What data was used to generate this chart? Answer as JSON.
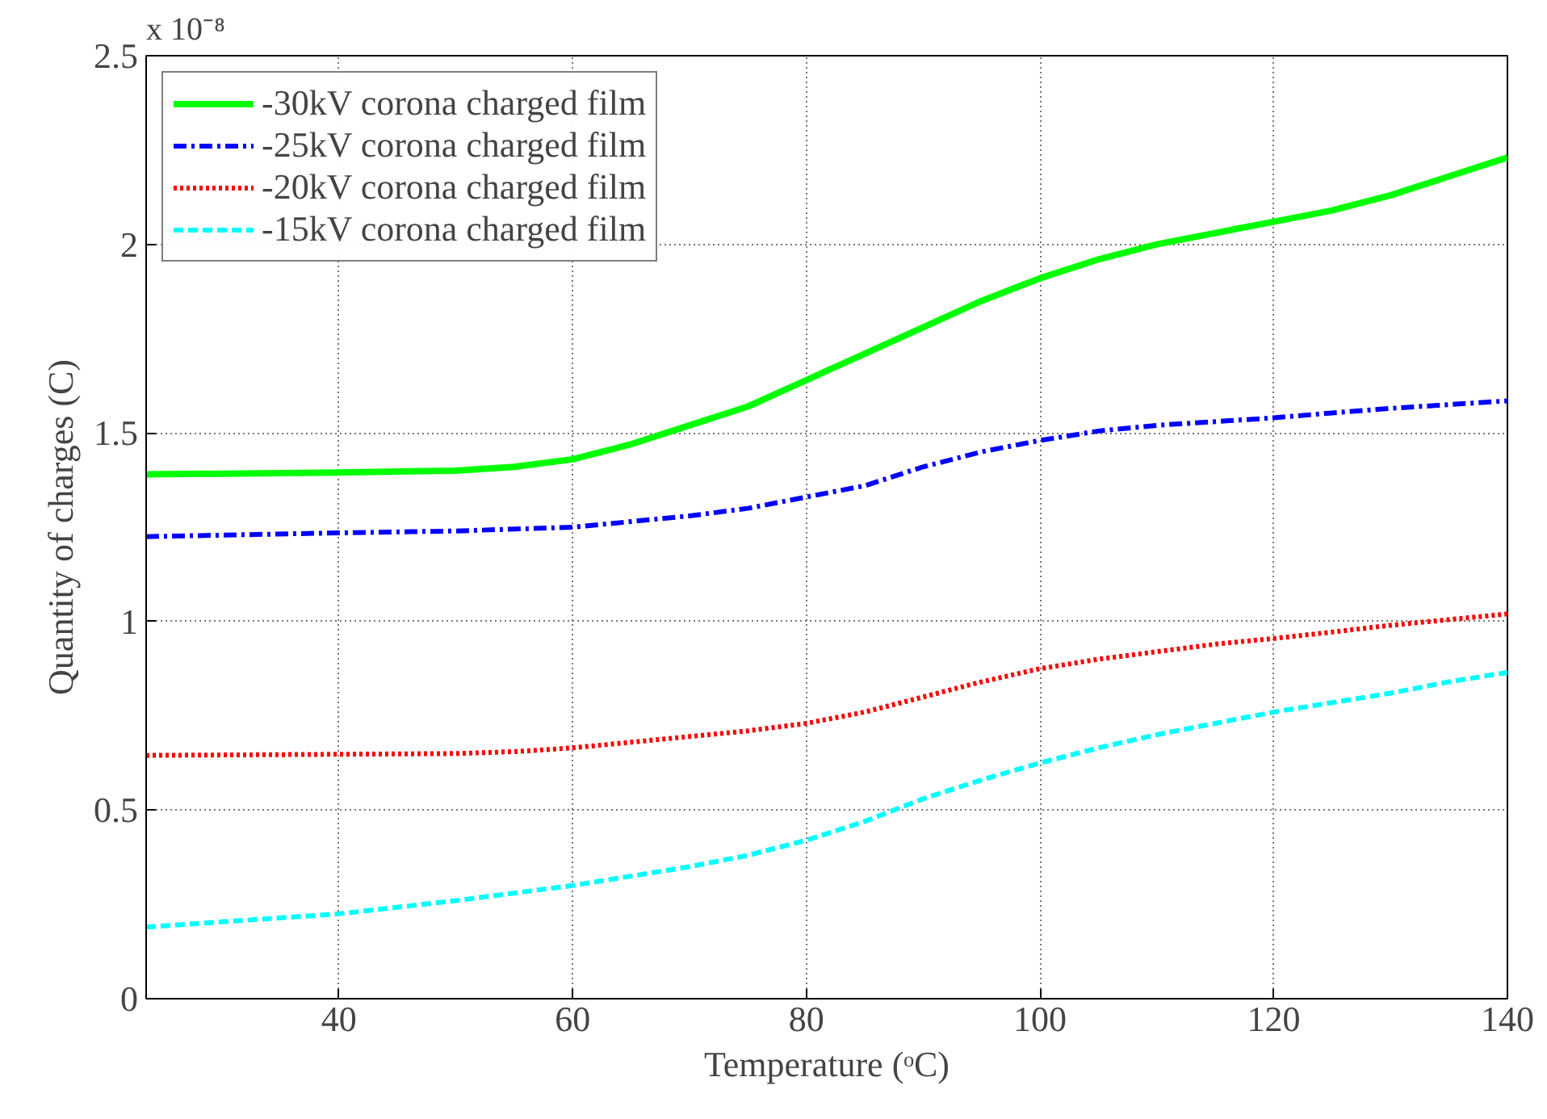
{
  "chart_data": {
    "type": "line",
    "xlabel": "Temperature (ᵒC)",
    "ylabel": "Quantity of charges (C)",
    "annotations": [
      "x 10⁻⁸"
    ],
    "xlim": [
      23.5,
      140
    ],
    "xticks": [
      40,
      60,
      80,
      100,
      120,
      140
    ],
    "ylim": [
      0,
      2.5
    ],
    "yticks": [
      0,
      0.5,
      1,
      1.5,
      2,
      2.5
    ],
    "grid": true,
    "legend": "top left",
    "x": [
      23.5,
      40,
      50,
      55,
      60,
      65,
      70,
      75,
      80,
      85,
      90,
      95,
      100,
      105,
      110,
      115,
      120,
      125,
      130,
      135,
      140
    ],
    "series": [
      {
        "name": "-30kV corona charged film",
        "color": "#00ff00",
        "line_style": "solid",
        "values": [
          1.39,
          1.395,
          1.4,
          1.41,
          1.43,
          1.47,
          1.52,
          1.57,
          1.64,
          1.71,
          1.78,
          1.85,
          1.91,
          1.96,
          2.0,
          2.03,
          2.06,
          2.09,
          2.13,
          2.18,
          2.23
        ]
      },
      {
        "name": "-25kV corona charged film",
        "color": "#0000ff",
        "line_style": "dashdot",
        "values": [
          1.225,
          1.235,
          1.24,
          1.245,
          1.25,
          1.265,
          1.28,
          1.3,
          1.33,
          1.36,
          1.41,
          1.45,
          1.48,
          1.505,
          1.52,
          1.53,
          1.54,
          1.553,
          1.565,
          1.575,
          1.585
        ]
      },
      {
        "name": "-20kV corona charged film",
        "color": "#ff0000",
        "line_style": "dotted",
        "values": [
          0.645,
          0.648,
          0.65,
          0.655,
          0.665,
          0.68,
          0.695,
          0.71,
          0.73,
          0.76,
          0.8,
          0.84,
          0.875,
          0.9,
          0.92,
          0.94,
          0.955,
          0.972,
          0.99,
          1.005,
          1.02
        ]
      },
      {
        "name": "-15kV corona charged film",
        "color": "#00ffff",
        "line_style": "dashed",
        "values": [
          0.19,
          0.225,
          0.26,
          0.28,
          0.3,
          0.325,
          0.35,
          0.38,
          0.42,
          0.47,
          0.53,
          0.58,
          0.625,
          0.665,
          0.7,
          0.73,
          0.76,
          0.785,
          0.81,
          0.84,
          0.865
        ]
      }
    ]
  }
}
